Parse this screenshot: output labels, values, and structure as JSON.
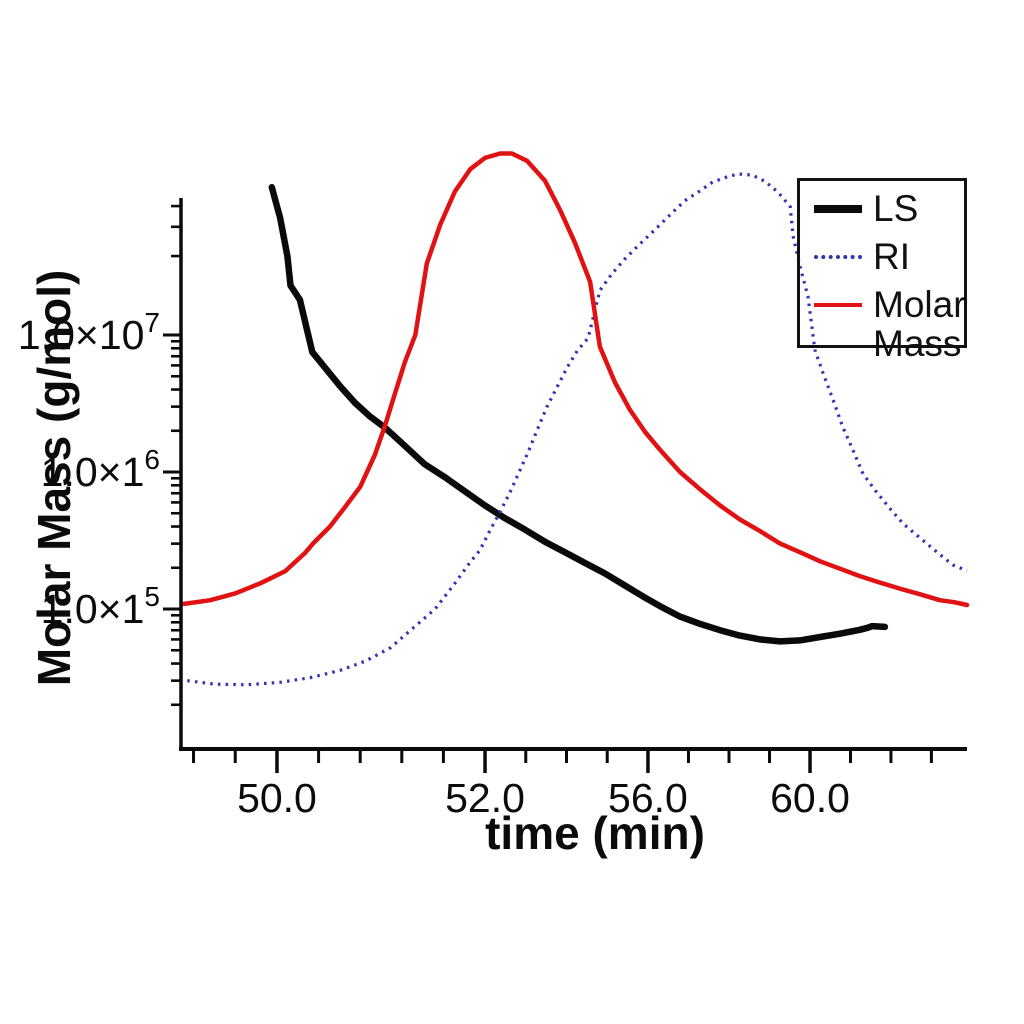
{
  "figure": {
    "background": "#ffffff",
    "x_axis": {
      "label": "time (min)",
      "tick_labels": [
        {
          "label": "50.0",
          "t": 50.0
        },
        {
          "label": "52.0",
          "t": 52.0
        },
        {
          "label": "56.0",
          "t": 56.0
        },
        {
          "label": "60.0",
          "t": 60.0
        }
      ],
      "minor_ticks_t": [
        49.2,
        49.6,
        50.4,
        50.8,
        51.2,
        51.6,
        53,
        54,
        55,
        57,
        58,
        59,
        61,
        62,
        63
      ]
    },
    "y_axis": {
      "label": "Molar Mass (g/mol)",
      "scale": "log",
      "tick_labels": [
        {
          "base": "1.0×10",
          "sup": "7",
          "value": 10000000.0
        },
        {
          "base": "1.0×1",
          "sup": "6",
          "value": 1000000.0
        },
        {
          "base": "1.0×1",
          "sup": "5",
          "value": 100000.0
        }
      ],
      "major_tick_values": [
        100000.0,
        1000000.0,
        10000000.0,
        100000000.0
      ]
    },
    "legend": {
      "position": "upper right",
      "items": [
        {
          "label": "LS",
          "color": "#0a0a0a",
          "line": "solid-thick"
        },
        {
          "label": "RI",
          "color": "#3232b4",
          "line": "dotted"
        },
        {
          "label": "Molar Mass",
          "color": "#e01212",
          "line": "solid"
        }
      ]
    }
  },
  "chart_data": {
    "type": "line",
    "title": "",
    "xlabel": "time (min)",
    "ylabel": "Molar Mass (g/mol)",
    "y_scale": "log",
    "x_range": [
      49.08,
      63.88
    ],
    "y_range": [
      22000.0,
      100000000.0
    ],
    "grid": false,
    "axis_mapping": {
      "x_anchors_t_to_frac": [
        [
          49.08,
          0.0
        ],
        [
          50.0,
          0.1221
        ],
        [
          52.0,
          0.3868
        ],
        [
          56.0,
          0.5941
        ],
        [
          60.0,
          0.8003
        ],
        [
          63.88,
          1.0
        ]
      ],
      "y_anchors_log10_to_frac": [
        [
          8.0,
          0.0
        ],
        [
          7.0,
          0.2491
        ],
        [
          6.0,
          0.4982
        ],
        [
          5.0,
          0.8
        ]
      ]
    },
    "series": [
      {
        "name": "LS",
        "color": "#0a0a0a",
        "style": "solid",
        "width": 6.5,
        "points": [
          [
            49.95,
            52000000.0
          ],
          [
            50.03,
            34000000.0
          ],
          [
            50.1,
            20000000.0
          ],
          [
            50.13,
            13300000.0
          ],
          [
            50.22,
            10900000.0
          ],
          [
            50.34,
            7500000.0
          ],
          [
            50.46,
            5800000.0
          ],
          [
            50.61,
            4200000.0
          ],
          [
            50.75,
            3200000.0
          ],
          [
            50.89,
            2560000.0
          ],
          [
            51.04,
            2100000.0
          ],
          [
            51.23,
            1550000.0
          ],
          [
            51.42,
            1140000.0
          ],
          [
            51.62,
            910000.0
          ],
          [
            51.81,
            720000.0
          ],
          [
            52.0,
            570000.0
          ],
          [
            52.49,
            460000.0
          ],
          [
            52.98,
            380000.0
          ],
          [
            53.47,
            310000.0
          ],
          [
            53.96,
            260000.0
          ],
          [
            54.45,
            217000.0
          ],
          [
            54.94,
            182000.0
          ],
          [
            55.44,
            148000.0
          ],
          [
            55.93,
            121000.0
          ],
          [
            56.35,
            103000.0
          ],
          [
            56.79,
            88000.0
          ],
          [
            57.28,
            78000.0
          ],
          [
            57.78,
            70000.0
          ],
          [
            58.27,
            64000.0
          ],
          [
            58.77,
            60000.0
          ],
          [
            59.26,
            58000.0
          ],
          [
            59.75,
            59000.0
          ],
          [
            60.25,
            62500.0
          ],
          [
            60.74,
            66000.0
          ],
          [
            61.23,
            70500.0
          ],
          [
            61.43,
            73000.0
          ],
          [
            61.53,
            75000.0
          ],
          [
            61.85,
            74000.0
          ]
        ]
      },
      {
        "name": "RI",
        "color": "#3232b4",
        "style": "dotted",
        "width": 3.2,
        "points": [
          [
            49.14,
            30000.0
          ],
          [
            49.4,
            28300.0
          ],
          [
            49.71,
            28000.0
          ],
          [
            50.03,
            29200.0
          ],
          [
            50.32,
            31500.0
          ],
          [
            50.61,
            35700.0
          ],
          [
            50.85,
            41700.0
          ],
          [
            51.09,
            52100.0
          ],
          [
            51.3,
            71700.0
          ],
          [
            51.52,
            100000.0
          ],
          [
            51.71,
            154000.0
          ],
          [
            51.86,
            221000.0
          ],
          [
            51.95,
            268000.0
          ],
          [
            52.12,
            374000.0
          ],
          [
            52.34,
            493000.0
          ],
          [
            52.61,
            707000.0
          ],
          [
            52.83,
            986000.0
          ],
          [
            53.06,
            1400000.0
          ],
          [
            53.28,
            2030000.0
          ],
          [
            53.52,
            2980000.0
          ],
          [
            53.77,
            4170000.0
          ],
          [
            54.01,
            5740000.0
          ],
          [
            54.26,
            7640000.0
          ],
          [
            54.53,
            9510000.0
          ],
          [
            54.82,
            12400000.0
          ],
          [
            55.12,
            15700000.0
          ],
          [
            55.44,
            19300000.0
          ],
          [
            55.8,
            23600000.0
          ],
          [
            56.17,
            28800000.0
          ],
          [
            56.54,
            35300000.0
          ],
          [
            56.91,
            43100000.0
          ],
          [
            57.28,
            49300000.0
          ],
          [
            57.58,
            55500000.0
          ],
          [
            57.9,
            59400000.0
          ],
          [
            58.22,
            62500000.0
          ],
          [
            58.4,
            62000000.0
          ],
          [
            58.57,
            61500000.0
          ],
          [
            58.89,
            56300000.0
          ],
          [
            59.21,
            48500000.0
          ],
          [
            59.51,
            39700000.0
          ],
          [
            59.58,
            26500000.0
          ],
          [
            59.75,
            17400000.0
          ],
          [
            59.95,
            11400000.0
          ],
          [
            60.12,
            7780000.0
          ],
          [
            60.32,
            5280000.0
          ],
          [
            60.57,
            3360000.0
          ],
          [
            60.81,
            2130000.0
          ],
          [
            61.06,
            1450000.0
          ],
          [
            61.31,
            970000.0
          ],
          [
            61.65,
            710000.0
          ],
          [
            61.98,
            540000.0
          ],
          [
            62.3,
            420000.0
          ],
          [
            62.72,
            330000.0
          ],
          [
            63.14,
            260000.0
          ],
          [
            63.53,
            210000.0
          ],
          [
            63.88,
            190000.0
          ]
        ]
      },
      {
        "name": "Molar Mass",
        "color": "#e01212",
        "style": "solid",
        "width": 4.5,
        "points": [
          [
            49.11,
            109000.0
          ],
          [
            49.36,
            116000.0
          ],
          [
            49.6,
            130000.0
          ],
          [
            49.84,
            154000.0
          ],
          [
            50.08,
            189000.0
          ],
          [
            50.27,
            257000.0
          ],
          [
            50.35,
            303000.0
          ],
          [
            50.51,
            400000.0
          ],
          [
            50.65,
            550000.0
          ],
          [
            50.8,
            780000.0
          ],
          [
            50.94,
            1330000.0
          ],
          [
            51.04,
            2200000.0
          ],
          [
            51.13,
            3650000.0
          ],
          [
            51.23,
            6350000.0
          ],
          [
            51.33,
            10000000.0
          ],
          [
            51.44,
            18000000.0
          ],
          [
            51.57,
            31000000.0
          ],
          [
            51.71,
            49000000.0
          ],
          [
            51.86,
            67000000.0
          ],
          [
            52.0,
            78000000.0
          ],
          [
            52.37,
            83000000.0
          ],
          [
            52.66,
            83000000.0
          ],
          [
            53.03,
            75000000.0
          ],
          [
            53.47,
            57000000.0
          ],
          [
            53.84,
            38000000.0
          ],
          [
            54.21,
            24000000.0
          ],
          [
            54.58,
            14000000.0
          ],
          [
            54.82,
            8200000.0
          ],
          [
            55.19,
            4500000.0
          ],
          [
            55.56,
            2840000.0
          ],
          [
            55.93,
            1960000.0
          ],
          [
            56.3,
            1450000.0
          ],
          [
            56.79,
            1000000.0
          ],
          [
            57.28,
            750000.0
          ],
          [
            57.78,
            570000.0
          ],
          [
            58.27,
            450000.0
          ],
          [
            58.77,
            370000.0
          ],
          [
            59.26,
            300000.0
          ],
          [
            59.75,
            260000.0
          ],
          [
            60.25,
            223000.0
          ],
          [
            60.74,
            197000.0
          ],
          [
            61.23,
            174000.0
          ],
          [
            61.73,
            156000.0
          ],
          [
            62.22,
            141000.0
          ],
          [
            62.72,
            128000.0
          ],
          [
            63.21,
            116000.0
          ],
          [
            63.58,
            112000.0
          ],
          [
            63.88,
            107000.0
          ]
        ]
      }
    ]
  }
}
